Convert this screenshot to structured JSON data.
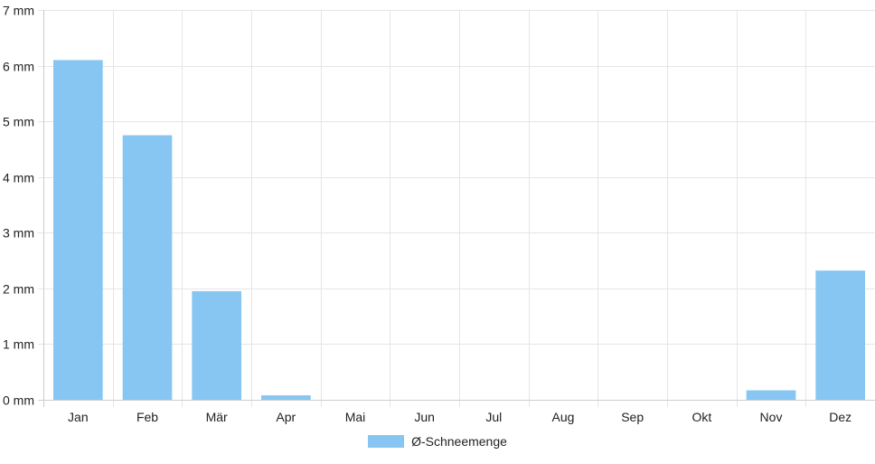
{
  "colors": {
    "bar": "#87c6f2",
    "grid": "#e5e5e5",
    "axis": "#cccccc",
    "text": "#222222"
  },
  "chart_data": {
    "type": "bar",
    "categories": [
      "Jan",
      "Feb",
      "Mär",
      "Apr",
      "Mai",
      "Jun",
      "Jul",
      "Aug",
      "Sep",
      "Okt",
      "Nov",
      "Dez"
    ],
    "series": [
      {
        "name": "Ø-Schneemenge",
        "values": [
          6.1,
          4.75,
          1.95,
          0.08,
          0,
          0,
          0,
          0,
          0,
          0,
          0.17,
          2.32
        ]
      }
    ],
    "ylim": [
      0,
      7
    ],
    "yticks": [
      0,
      1,
      2,
      3,
      4,
      5,
      6,
      7
    ],
    "y_unit": "mm",
    "ytick_labels": [
      "0 mm",
      "1 mm",
      "2 mm",
      "3 mm",
      "4 mm",
      "5 mm",
      "6 mm",
      "7 mm"
    ],
    "grid": true,
    "legend": "bottom-center"
  }
}
